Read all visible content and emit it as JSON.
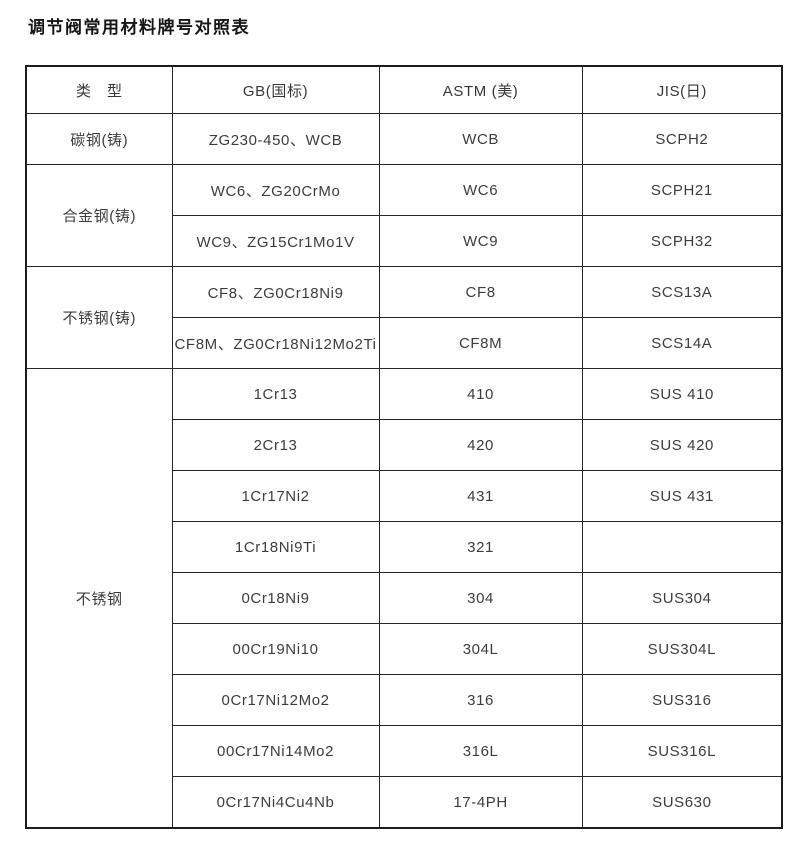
{
  "page_title": "调节阀常用材料牌号对照表",
  "table": {
    "headers": {
      "type": "类　型",
      "gb": "GB(国标)",
      "astm": "ASTM (美)",
      "jis": "JIS(日)"
    },
    "type_cells": [
      {
        "label": "碳钢(铸)",
        "rowspan": 1
      },
      {
        "label": "合金钢(铸)",
        "rowspan": 2
      },
      {
        "label": "不锈钢(铸)",
        "rowspan": 2
      },
      {
        "label": "不锈钢",
        "rowspan": 9
      }
    ],
    "rows": [
      {
        "gb": "ZG230-450、WCB",
        "astm": "WCB",
        "jis": "SCPH2"
      },
      {
        "gb": "WC6、ZG20CrMo",
        "astm": "WC6",
        "jis": "SCPH21"
      },
      {
        "gb": "WC9、ZG15Cr1Mo1V",
        "astm": "WC9",
        "jis": "SCPH32"
      },
      {
        "gb": "CF8、ZG0Cr18Ni9",
        "astm": "CF8",
        "jis": "SCS13A"
      },
      {
        "gb": "CF8M、ZG0Cr18Ni12Mo2Ti",
        "astm": "CF8M",
        "jis": "SCS14A"
      },
      {
        "gb": "1Cr13",
        "astm": "410",
        "jis": "SUS 410"
      },
      {
        "gb": "2Cr13",
        "astm": "420",
        "jis": "SUS 420"
      },
      {
        "gb": "1Cr17Ni2",
        "astm": "431",
        "jis": "SUS 431"
      },
      {
        "gb": "1Cr18Ni9Ti",
        "astm": "321",
        "jis": ""
      },
      {
        "gb": "0Cr18Ni9",
        "astm": "304",
        "jis": "SUS304"
      },
      {
        "gb": "00Cr19Ni10",
        "astm": "304L",
        "jis": "SUS304L"
      },
      {
        "gb": "0Cr17Ni12Mo2",
        "astm": "316",
        "jis": "SUS316"
      },
      {
        "gb": "00Cr17Ni14Mo2",
        "astm": "316L",
        "jis": "SUS316L"
      },
      {
        "gb": "0Cr17Ni4Cu4Nb",
        "astm": "17-4PH",
        "jis": "SUS630"
      }
    ]
  }
}
